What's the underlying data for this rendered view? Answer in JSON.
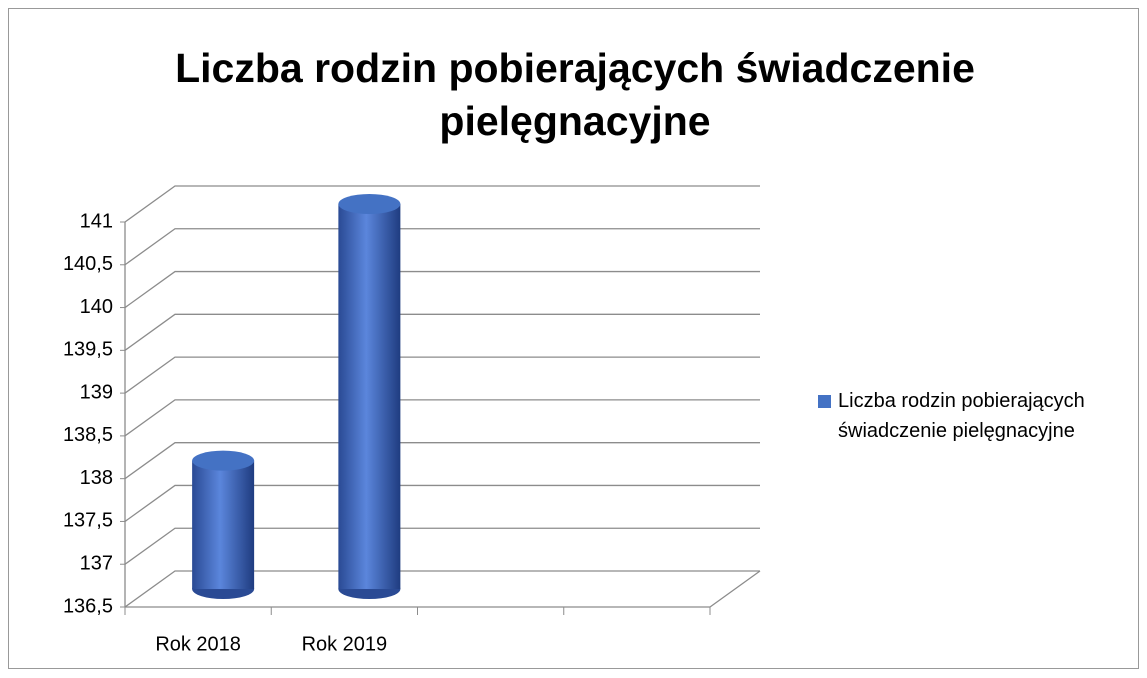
{
  "chart_data": {
    "type": "bar3d",
    "title": "Liczba rodzin pobierających świadczenie pielęgnacyjne",
    "categories": [
      "Rok 2018",
      "Rok 2019",
      null,
      null
    ],
    "series": [
      {
        "name": "Liczba rodzin pobierających świadczenie pielęgnacyjne",
        "color": "#4472c4",
        "values": [
          138,
          141,
          null,
          null
        ]
      }
    ],
    "ylim": [
      136.5,
      141
    ],
    "yticks": [
      {
        "value": 136.5,
        "label": "136,5"
      },
      137,
      {
        "value": 137.5,
        "label": "137,5"
      },
      138,
      {
        "value": 138.5,
        "label": "138,5"
      },
      139,
      {
        "value": 139.5,
        "label": "139,5"
      },
      140,
      {
        "value": 140.5,
        "label": "140,5"
      },
      141
    ],
    "grid": true,
    "legend": "right"
  }
}
